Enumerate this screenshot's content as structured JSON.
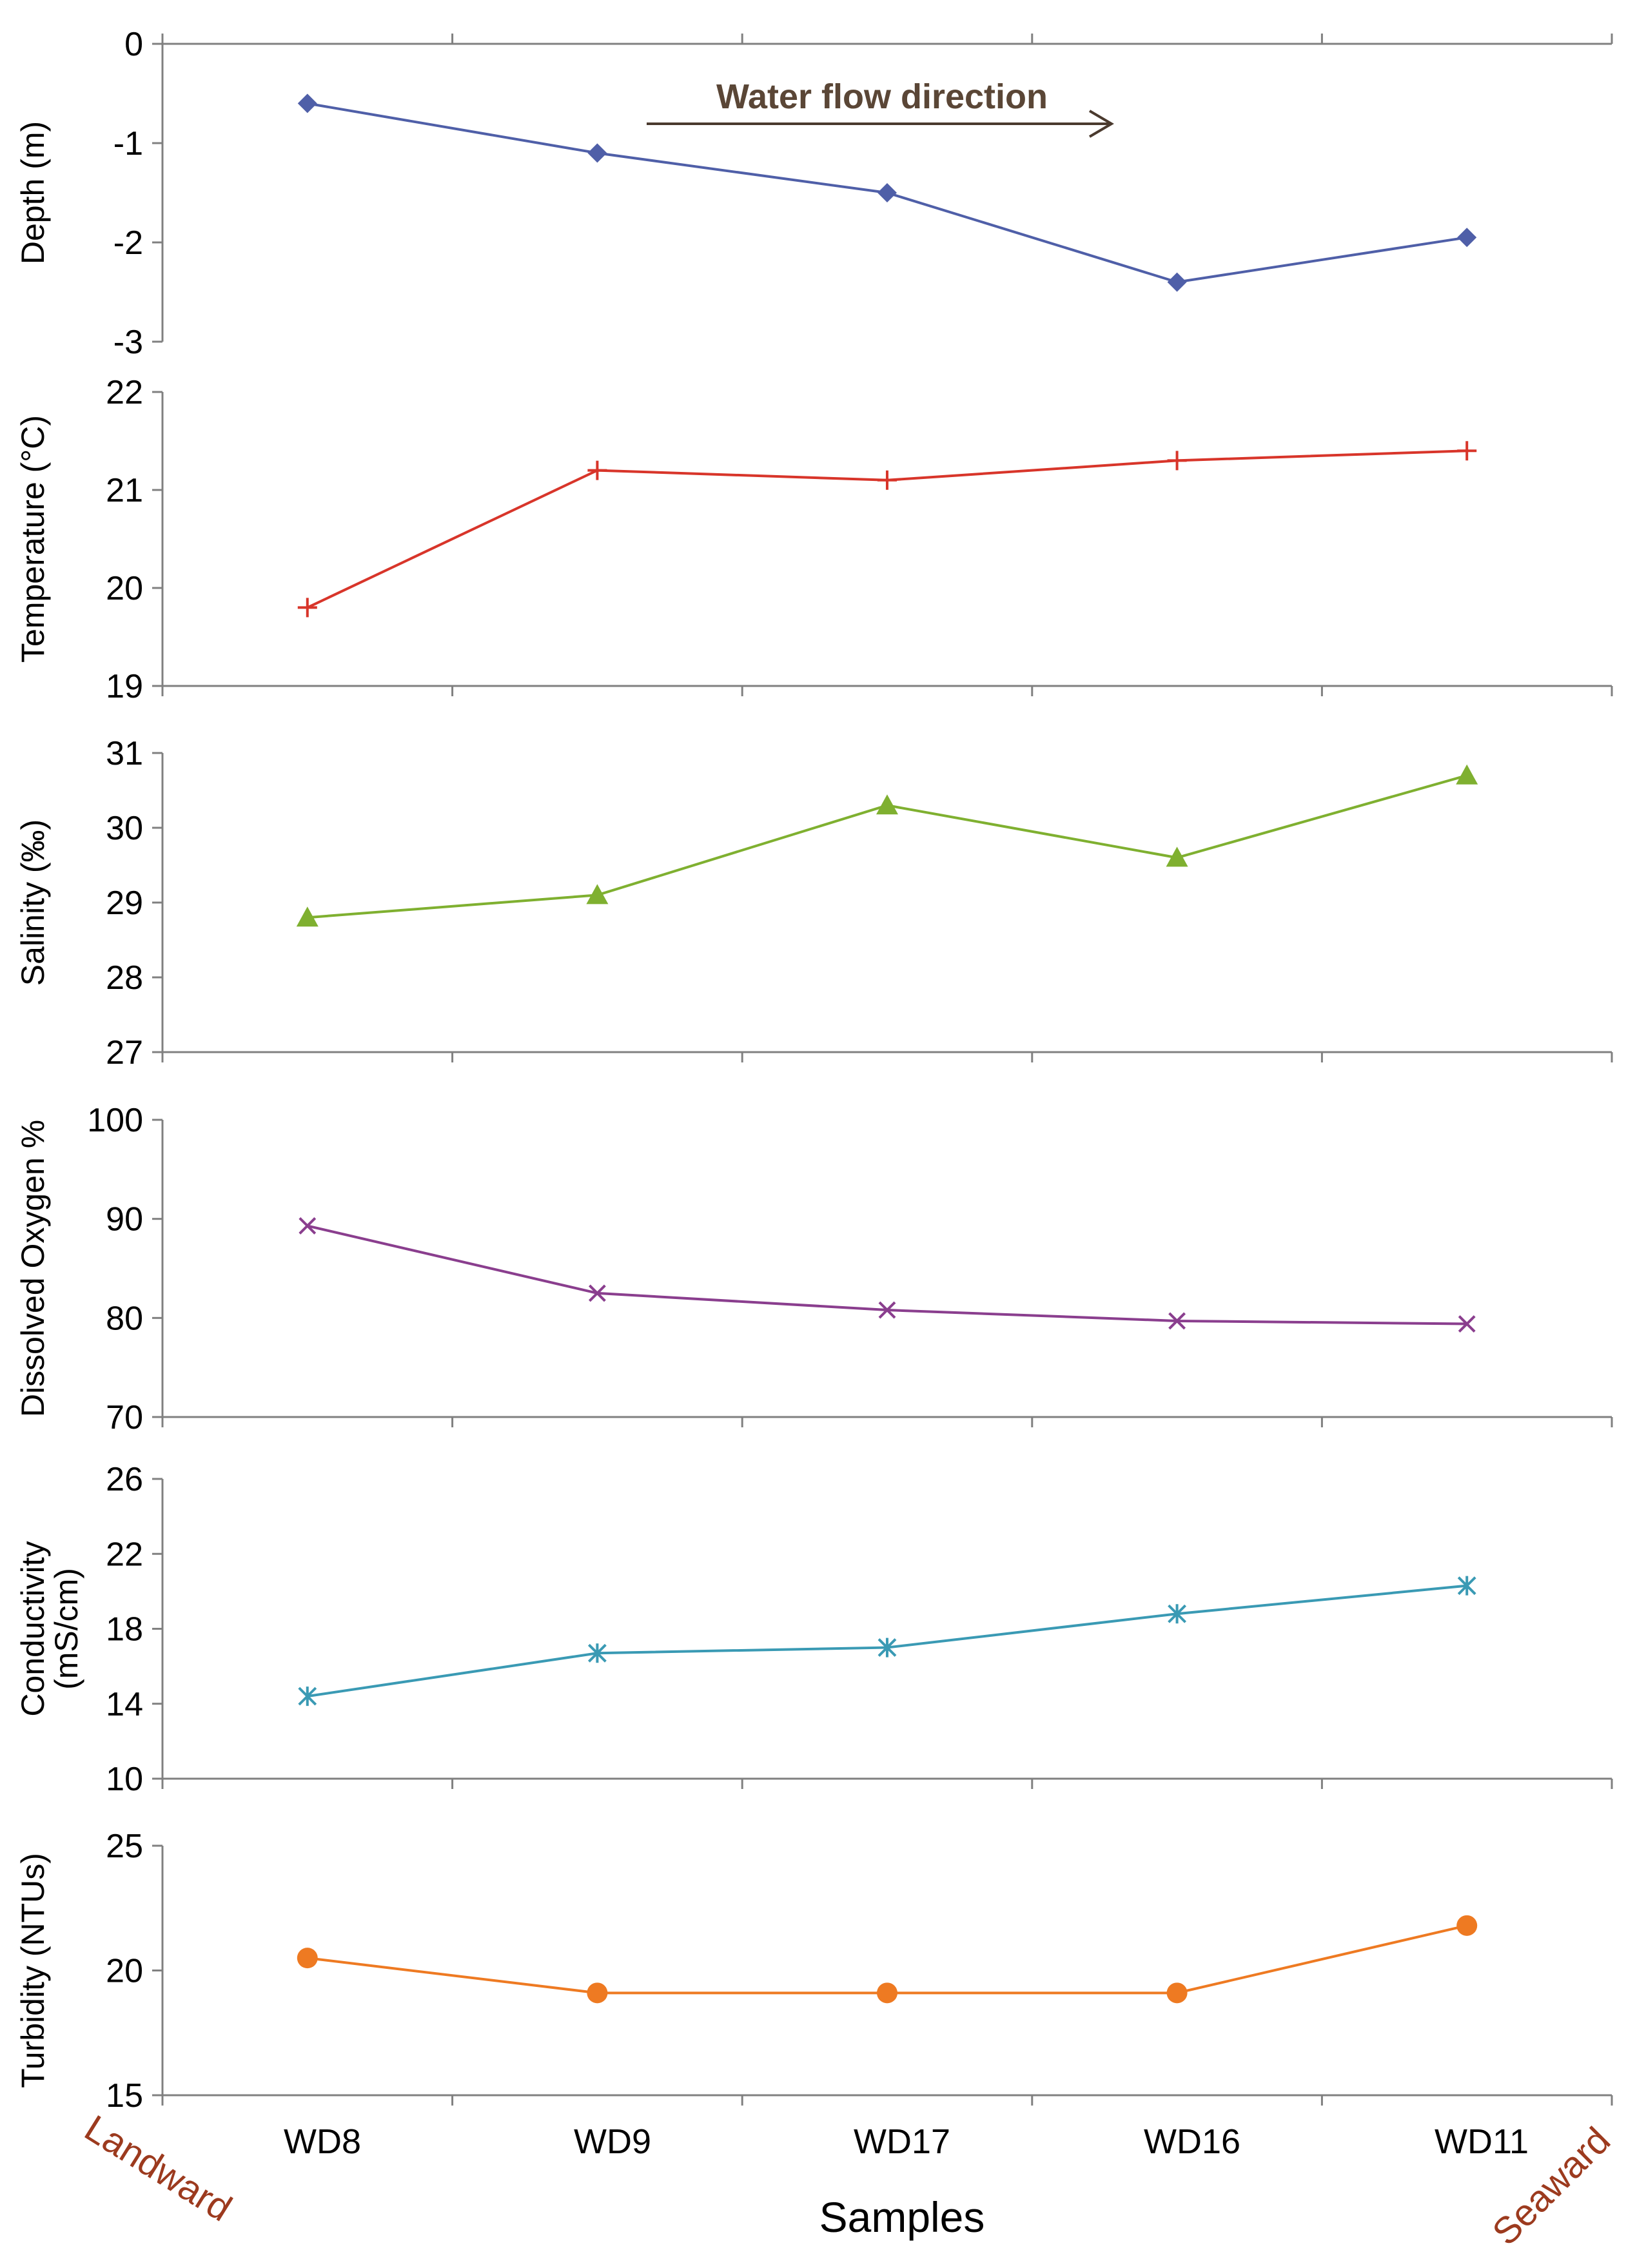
{
  "chart_data": [
    {
      "type": "line",
      "panel": "depth",
      "ylabel": "Depth (m)",
      "ylim": [
        -3,
        0
      ],
      "yticks": [
        0,
        -1,
        -2,
        -3
      ],
      "categories": [
        "WD8",
        "WD9",
        "WD17",
        "WD16",
        "WD11"
      ],
      "series": [
        {
          "name": "Depth",
          "values": [
            -0.6,
            -1.1,
            -1.5,
            -2.4,
            -1.95
          ],
          "color": "#4F5FA8",
          "marker": "diamond"
        }
      ],
      "annotation": "Water flow direction"
    },
    {
      "type": "line",
      "panel": "temperature",
      "ylabel": "Temperature (°C)",
      "ylim": [
        19,
        22
      ],
      "yticks": [
        22,
        21,
        20,
        19
      ],
      "categories": [
        "WD8",
        "WD9",
        "WD17",
        "WD16",
        "WD11"
      ],
      "series": [
        {
          "name": "Temperature",
          "values": [
            19.8,
            21.2,
            21.1,
            21.3,
            21.4
          ],
          "color": "#D8352A",
          "marker": "plus"
        }
      ]
    },
    {
      "type": "line",
      "panel": "salinity",
      "ylabel": "Salinity (‰)",
      "ylim": [
        27,
        31
      ],
      "yticks": [
        31,
        30,
        29,
        28,
        27
      ],
      "categories": [
        "WD8",
        "WD9",
        "WD17",
        "WD16",
        "WD11"
      ],
      "series": [
        {
          "name": "Salinity",
          "values": [
            28.8,
            29.1,
            30.3,
            29.6,
            30.7
          ],
          "color": "#7FB030",
          "marker": "triangle"
        }
      ]
    },
    {
      "type": "line",
      "panel": "oxygen",
      "ylabel": "Dissolved Oxygen %",
      "ylim": [
        70,
        100
      ],
      "yticks": [
        100,
        90,
        80,
        70
      ],
      "categories": [
        "WD8",
        "WD9",
        "WD17",
        "WD16",
        "WD11"
      ],
      "series": [
        {
          "name": "Dissolved Oxygen",
          "values": [
            89.3,
            82.5,
            80.8,
            79.7,
            79.4
          ],
          "color": "#8A3E8E",
          "marker": "x"
        }
      ]
    },
    {
      "type": "line",
      "panel": "conductivity",
      "ylabel": "Conductivity",
      "ylabel2": "(mS/cm)",
      "ylim": [
        10,
        26
      ],
      "yticks": [
        26,
        22,
        18,
        14,
        10
      ],
      "categories": [
        "WD8",
        "WD9",
        "WD17",
        "WD16",
        "WD11"
      ],
      "series": [
        {
          "name": "Conductivity",
          "values": [
            14.4,
            16.7,
            17.0,
            18.8,
            20.3
          ],
          "color": "#3A9AB4",
          "marker": "asterisk"
        }
      ]
    },
    {
      "type": "line",
      "panel": "turbidity",
      "ylabel": "Turbidity (NTUs)",
      "ylim": [
        15,
        25
      ],
      "yticks": [
        25,
        20,
        15
      ],
      "categories": [
        "WD8",
        "WD9",
        "WD17",
        "WD16",
        "WD11"
      ],
      "series": [
        {
          "name": "Turbidity",
          "values": [
            20.5,
            19.1,
            19.1,
            19.1,
            21.8
          ],
          "color": "#EE7A22",
          "marker": "circle"
        }
      ]
    }
  ],
  "xaxis": {
    "title": "Samples",
    "tick_labels": [
      "WD8",
      "WD9",
      "WD17",
      "WD16",
      "WD11"
    ],
    "left_label": "Landward",
    "right_label": "Seaward",
    "side_label_color": "#9C3A1E"
  }
}
